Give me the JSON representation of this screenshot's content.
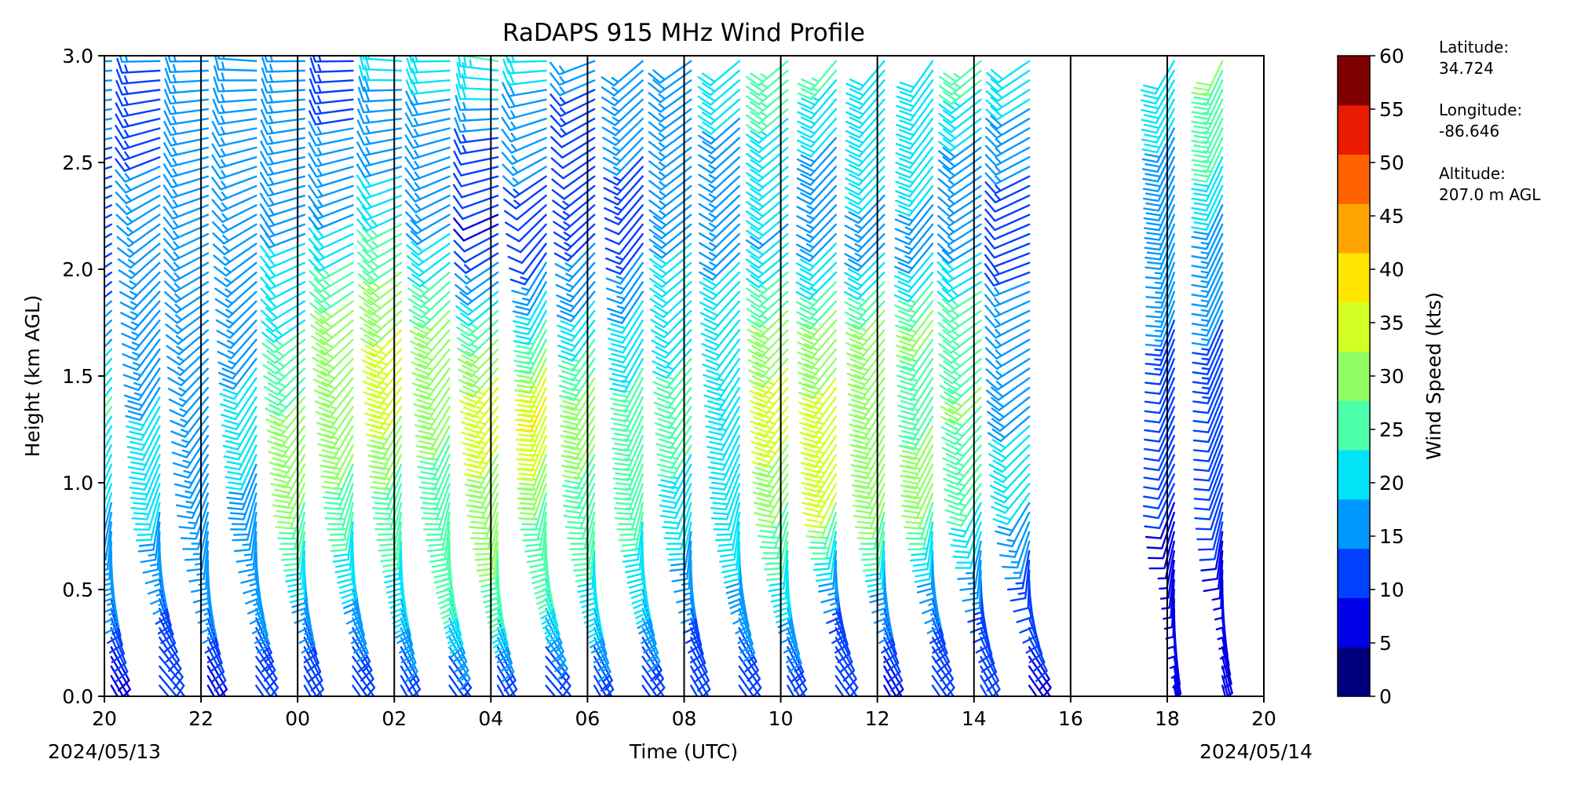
{
  "chart_data": {
    "type": "wind_barb_profile",
    "title": "RaDAPS 915 MHz Wind Profile",
    "xlabel": "Time (UTC)",
    "ylabel": "Height (km AGL)",
    "x_tick_labels": [
      "20",
      "22",
      "00",
      "02",
      "04",
      "06",
      "08",
      "10",
      "12",
      "14",
      "16",
      "18",
      "20"
    ],
    "x_range_hours": [
      0,
      24
    ],
    "start_date_label": "2024/05/13",
    "end_date_label": "2024/05/14",
    "y_ticks": [
      "0.0",
      "0.5",
      "1.0",
      "1.5",
      "2.0",
      "2.5",
      "3.0"
    ],
    "ylim": [
      0.0,
      3.0
    ],
    "grid": "vertical lines every 2 hours",
    "colorbar": {
      "label": "Wind Speed (kts)",
      "ticks": [
        "0",
        "5",
        "10",
        "15",
        "20",
        "25",
        "30",
        "35",
        "40",
        "45",
        "50",
        "55",
        "60"
      ],
      "range": [
        0,
        60
      ],
      "colors": [
        "#00007f",
        "#0000e8",
        "#0040ff",
        "#0098ff",
        "#00e4f8",
        "#4cffaa",
        "#90ff66",
        "#d4ff23",
        "#ffe600",
        "#ffa400",
        "#ff6200",
        "#e81b00",
        "#7f0000"
      ]
    },
    "gap_hours": [
      16,
      18
    ],
    "profile_time_hours": [
      0.5,
      1.5,
      2.5,
      3.5,
      4.5,
      5.5,
      6.5,
      7.5,
      8.5,
      9.5,
      10.5,
      11.5,
      12.5,
      13.5,
      14.5,
      15.5,
      16.5,
      17.5,
      18.5,
      19.5,
      22.5,
      23.5
    ],
    "profile_speed_kts_by_height_km": [
      {
        "height_km": 0.2,
        "speed_kts": [
          8,
          10,
          9,
          12,
          10,
          12,
          12,
          13,
          12,
          12,
          13,
          12,
          10,
          11,
          12,
          11,
          9,
          11,
          10,
          9,
          6,
          7
        ]
      },
      {
        "height_km": 0.6,
        "speed_kts": [
          16,
          14,
          17,
          16,
          18,
          18,
          22,
          25,
          27,
          24,
          22,
          20,
          15,
          18,
          20,
          14,
          17,
          15,
          14,
          12,
          6,
          7
        ]
      },
      {
        "height_km": 1.0,
        "speed_kts": [
          19,
          20,
          16,
          18,
          30,
          26,
          25,
          24,
          30,
          28,
          26,
          25,
          22,
          20,
          30,
          35,
          32,
          30,
          25,
          20,
          10,
          12
        ]
      },
      {
        "height_km": 1.4,
        "speed_kts": [
          24,
          19,
          15,
          20,
          28,
          32,
          34,
          30,
          36,
          38,
          30,
          25,
          25,
          23,
          35,
          34,
          30,
          27,
          28,
          18,
          10,
          12
        ]
      },
      {
        "height_km": 1.8,
        "speed_kts": [
          15,
          14,
          14,
          16,
          22,
          30,
          32,
          28,
          24,
          22,
          20,
          20,
          21,
          22,
          28,
          28,
          28,
          28,
          26,
          16,
          14,
          14
        ]
      },
      {
        "height_km": 2.2,
        "speed_kts": [
          10,
          17,
          16,
          17,
          18,
          19,
          24,
          18,
          8,
          10,
          13,
          12,
          18,
          16,
          18,
          17,
          16,
          16,
          16,
          10,
          18,
          16
        ]
      },
      {
        "height_km": 2.6,
        "speed_kts": [
          14,
          13,
          16,
          14,
          15,
          14,
          16,
          15,
          13,
          16,
          12,
          14,
          16,
          17,
          22,
          18,
          22,
          22,
          18,
          16,
          18,
          24
        ]
      },
      {
        "height_km": 3.0,
        "speed_kts": [
          18,
          14,
          15,
          14,
          14,
          13,
          20,
          22,
          25,
          20,
          15,
          14,
          18,
          22,
          25,
          25,
          20,
          22,
          26,
          22,
          20,
          28
        ]
      }
    ],
    "profile_direction_deg_from": [
      {
        "height_km": 0.2,
        "dir_deg": [
          150,
          140,
          150,
          145,
          150,
          145,
          150,
          145,
          150,
          140,
          150,
          145,
          150,
          145,
          150,
          145,
          150,
          145,
          150,
          145,
          170,
          165
        ]
      },
      {
        "height_km": 1.0,
        "dir_deg": [
          200,
          200,
          205,
          200,
          205,
          200,
          200,
          200,
          205,
          200,
          205,
          200,
          205,
          200,
          210,
          210,
          205,
          205,
          215,
          220,
          205,
          200
        ]
      },
      {
        "height_km": 2.0,
        "dir_deg": [
          235,
          225,
          240,
          230,
          245,
          240,
          235,
          230,
          235,
          210,
          220,
          215,
          230,
          225,
          230,
          225,
          225,
          220,
          240,
          250,
          200,
          205
        ]
      },
      {
        "height_km": 3.0,
        "dir_deg": [
          270,
          270,
          270,
          275,
          270,
          270,
          275,
          270,
          280,
          270,
          250,
          230,
          235,
          230,
          230,
          220,
          220,
          215,
          230,
          235,
          210,
          205
        ]
      }
    ]
  },
  "info": {
    "latitude_label": "Latitude:",
    "latitude_value": "34.724",
    "longitude_label": "Longitude:",
    "longitude_value": "-86.646",
    "altitude_label": "Altitude:",
    "altitude_value": "207.0 m AGL"
  }
}
